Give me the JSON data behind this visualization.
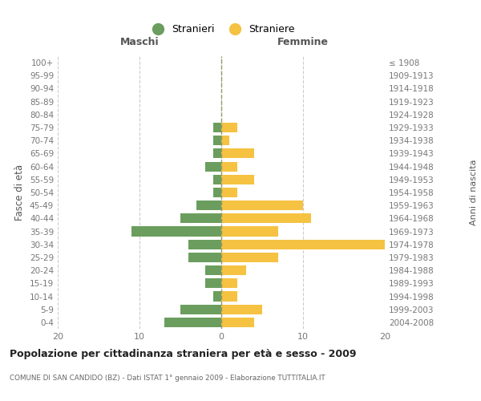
{
  "age_groups": [
    "0-4",
    "5-9",
    "10-14",
    "15-19",
    "20-24",
    "25-29",
    "30-34",
    "35-39",
    "40-44",
    "45-49",
    "50-54",
    "55-59",
    "60-64",
    "65-69",
    "70-74",
    "75-79",
    "80-84",
    "85-89",
    "90-94",
    "95-99",
    "100+"
  ],
  "birth_years": [
    "2004-2008",
    "1999-2003",
    "1994-1998",
    "1989-1993",
    "1984-1988",
    "1979-1983",
    "1974-1978",
    "1969-1973",
    "1964-1968",
    "1959-1963",
    "1954-1958",
    "1949-1953",
    "1944-1948",
    "1939-1943",
    "1934-1938",
    "1929-1933",
    "1924-1928",
    "1919-1923",
    "1914-1918",
    "1909-1913",
    "≤ 1908"
  ],
  "maschi": [
    7,
    5,
    1,
    2,
    2,
    4,
    4,
    11,
    5,
    3,
    1,
    1,
    2,
    1,
    1,
    1,
    0,
    0,
    0,
    0,
    0
  ],
  "femmine": [
    4,
    5,
    2,
    2,
    3,
    7,
    20,
    7,
    11,
    10,
    2,
    4,
    2,
    4,
    1,
    2,
    0,
    0,
    0,
    0,
    0
  ],
  "maschi_color": "#6b9e5e",
  "femmine_color": "#f5c242",
  "background_color": "#ffffff",
  "grid_color": "#cccccc",
  "title": "Popolazione per cittadinanza straniera per età e sesso - 2009",
  "subtitle": "COMUNE DI SAN CANDIDO (BZ) - Dati ISTAT 1° gennaio 2009 - Elaborazione TUTTITALIA.IT",
  "xlabel_left": "Maschi",
  "xlabel_right": "Femmine",
  "ylabel_left": "Fasce di età",
  "ylabel_right": "Anni di nascita",
  "legend_maschi": "Stranieri",
  "legend_femmine": "Straniere",
  "xlim": 20
}
